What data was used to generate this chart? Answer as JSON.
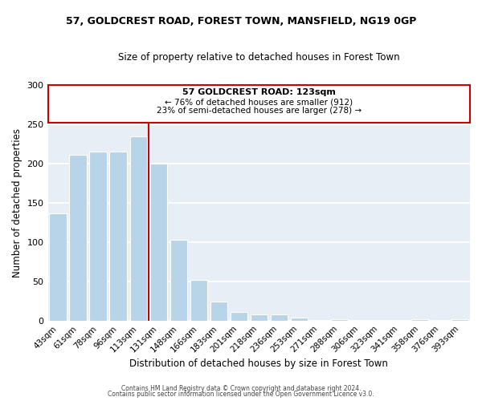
{
  "title": "57, GOLDCREST ROAD, FOREST TOWN, MANSFIELD, NG19 0GP",
  "subtitle": "Size of property relative to detached houses in Forest Town",
  "xlabel": "Distribution of detached houses by size in Forest Town",
  "ylabel": "Number of detached properties",
  "bar_labels": [
    "43sqm",
    "61sqm",
    "78sqm",
    "96sqm",
    "113sqm",
    "131sqm",
    "148sqm",
    "166sqm",
    "183sqm",
    "201sqm",
    "218sqm",
    "236sqm",
    "253sqm",
    "271sqm",
    "288sqm",
    "306sqm",
    "323sqm",
    "341sqm",
    "358sqm",
    "376sqm",
    "393sqm"
  ],
  "bar_values": [
    136,
    211,
    215,
    215,
    234,
    200,
    103,
    52,
    24,
    11,
    8,
    8,
    4,
    0,
    2,
    0,
    0,
    0,
    2,
    0,
    2
  ],
  "bar_color": "#b8d4e8",
  "bar_edge_color": "#ffffff",
  "marker_label": "57 GOLDCREST ROAD: 123sqm",
  "annotation_line1": "← 76% of detached houses are smaller (912)",
  "annotation_line2": "23% of semi-detached houses are larger (278) →",
  "vline_color": "#cc0000",
  "box_edge_color": "#cc0000",
  "ylim": [
    0,
    300
  ],
  "yticks": [
    0,
    50,
    100,
    150,
    200,
    250,
    300
  ],
  "bg_color": "#e8eef5",
  "footer1": "Contains HM Land Registry data © Crown copyright and database right 2024.",
  "footer2": "Contains public sector information licensed under the Open Government Licence v3.0."
}
